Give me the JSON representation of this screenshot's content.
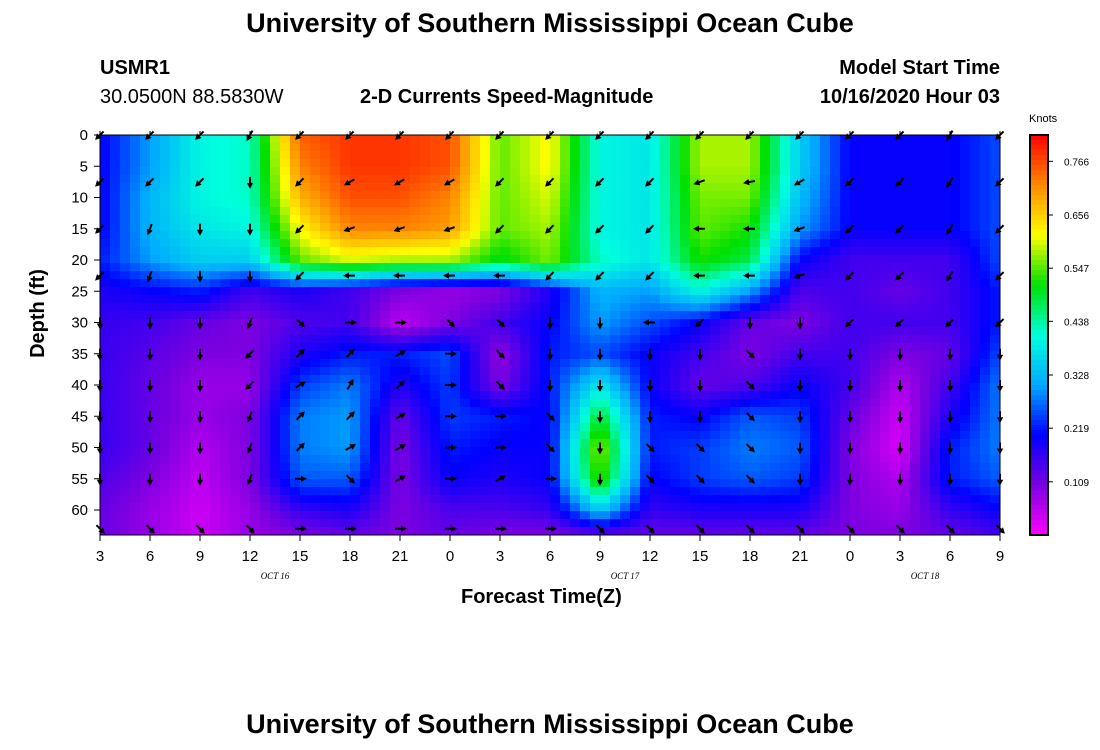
{
  "page": {
    "title_top": "University of Southern Mississippi Ocean Cube",
    "title_bottom": "University of Southern Mississippi Ocean Cube"
  },
  "header": {
    "station_id": "USMR1",
    "station_coords": "30.0500N 88.5830W",
    "product": "2-D Currents Speed-Magnitude",
    "model_start_label": "Model Start Time",
    "model_start_value": "10/16/2020 Hour 03"
  },
  "chart_data": {
    "type": "heatmap",
    "title": "2-D Currents Speed-Magnitude",
    "xlabel": "Forecast Time(Z)",
    "ylabel": "Depth (ft)",
    "x_tick_labels": [
      "3",
      "6",
      "9",
      "12",
      "15",
      "18",
      "21",
      "0",
      "3",
      "6",
      "9",
      "12",
      "15",
      "18",
      "21",
      "0",
      "3",
      "6",
      "9"
    ],
    "x_date_labels": [
      {
        "label": "OCT 16",
        "after_tick": 3
      },
      {
        "label": "OCT 17",
        "after_tick": 10
      },
      {
        "label": "OCT 18",
        "after_tick": 16
      }
    ],
    "y_ticks": [
      0,
      5,
      10,
      15,
      20,
      25,
      30,
      35,
      40,
      45,
      50,
      55,
      60
    ],
    "y_range": [
      0,
      64
    ],
    "colorbar": {
      "label": "Knots",
      "ticks": [
        "0.766",
        "0.656",
        "0.547",
        "0.438",
        "0.328",
        "0.219",
        "0.109"
      ],
      "range": [
        0.0,
        0.82
      ],
      "colors": [
        "#ff00ff",
        "#7a00e0",
        "#0000ff",
        "#00aaff",
        "#00ffdd",
        "#00e000",
        "#ffff00",
        "#ff8800",
        "#ff0000"
      ]
    },
    "speed_grid_knots": {
      "depths_ft": [
        0,
        5,
        10,
        15,
        20,
        25,
        30,
        35,
        40,
        45,
        50,
        55,
        60,
        64
      ],
      "rows": [
        [
          0.2,
          0.3,
          0.4,
          0.42,
          0.75,
          0.78,
          0.78,
          0.76,
          0.55,
          0.62,
          0.4,
          0.38,
          0.58,
          0.58,
          0.35,
          0.2,
          0.2,
          0.2,
          0.25
        ],
        [
          0.2,
          0.3,
          0.4,
          0.42,
          0.72,
          0.78,
          0.78,
          0.76,
          0.55,
          0.62,
          0.4,
          0.38,
          0.58,
          0.58,
          0.35,
          0.2,
          0.2,
          0.2,
          0.25
        ],
        [
          0.2,
          0.32,
          0.4,
          0.42,
          0.68,
          0.76,
          0.76,
          0.72,
          0.55,
          0.6,
          0.4,
          0.38,
          0.56,
          0.56,
          0.33,
          0.2,
          0.2,
          0.2,
          0.25
        ],
        [
          0.2,
          0.32,
          0.38,
          0.4,
          0.62,
          0.72,
          0.72,
          0.7,
          0.55,
          0.58,
          0.4,
          0.38,
          0.55,
          0.52,
          0.3,
          0.2,
          0.2,
          0.2,
          0.25
        ],
        [
          0.22,
          0.3,
          0.35,
          0.35,
          0.55,
          0.6,
          0.58,
          0.58,
          0.5,
          0.56,
          0.42,
          0.38,
          0.52,
          0.48,
          0.2,
          0.15,
          0.15,
          0.15,
          0.25
        ],
        [
          0.18,
          0.2,
          0.22,
          0.15,
          0.18,
          0.15,
          0.1,
          0.08,
          0.1,
          0.18,
          0.32,
          0.3,
          0.4,
          0.3,
          0.14,
          0.15,
          0.12,
          0.15,
          0.22
        ],
        [
          0.16,
          0.15,
          0.12,
          0.1,
          0.14,
          0.15,
          0.05,
          0.1,
          0.15,
          0.2,
          0.3,
          0.25,
          0.2,
          0.12,
          0.1,
          0.15,
          0.15,
          0.15,
          0.22
        ],
        [
          0.16,
          0.13,
          0.1,
          0.1,
          0.18,
          0.22,
          0.22,
          0.25,
          0.08,
          0.22,
          0.25,
          0.2,
          0.15,
          0.1,
          0.15,
          0.15,
          0.1,
          0.12,
          0.25
        ],
        [
          0.16,
          0.12,
          0.08,
          0.08,
          0.24,
          0.28,
          0.18,
          0.24,
          0.1,
          0.22,
          0.38,
          0.2,
          0.12,
          0.14,
          0.2,
          0.15,
          0.06,
          0.15,
          0.28
        ],
        [
          0.16,
          0.12,
          0.08,
          0.1,
          0.28,
          0.3,
          0.12,
          0.24,
          0.22,
          0.2,
          0.5,
          0.22,
          0.2,
          0.26,
          0.24,
          0.12,
          0.04,
          0.18,
          0.28
        ],
        [
          0.16,
          0.12,
          0.06,
          0.1,
          0.28,
          0.3,
          0.1,
          0.22,
          0.2,
          0.2,
          0.58,
          0.22,
          0.24,
          0.28,
          0.26,
          0.1,
          0.03,
          0.22,
          0.28
        ],
        [
          0.14,
          0.1,
          0.05,
          0.1,
          0.26,
          0.26,
          0.1,
          0.2,
          0.18,
          0.2,
          0.55,
          0.2,
          0.24,
          0.26,
          0.24,
          0.1,
          0.06,
          0.22,
          0.26
        ],
        [
          0.12,
          0.08,
          0.04,
          0.08,
          0.16,
          0.18,
          0.1,
          0.14,
          0.14,
          0.16,
          0.35,
          0.16,
          0.18,
          0.18,
          0.18,
          0.1,
          0.08,
          0.16,
          0.2
        ],
        [
          0.12,
          0.08,
          0.04,
          0.08,
          0.1,
          0.12,
          0.1,
          0.12,
          0.1,
          0.1,
          0.12,
          0.12,
          0.12,
          0.12,
          0.12,
          0.1,
          0.1,
          0.12,
          0.15
        ]
      ]
    },
    "direction_grid_deg": {
      "note_depths_ft": [
        0,
        7.5,
        15,
        22.5,
        30,
        35,
        40,
        45,
        50,
        55,
        63
      ],
      "rows": [
        [
          225,
          225,
          225,
          210,
          225,
          225,
          225,
          225,
          225,
          225,
          225,
          225,
          225,
          225,
          225,
          225,
          225,
          210,
          225
        ],
        [
          225,
          225,
          225,
          180,
          225,
          240,
          240,
          240,
          225,
          225,
          225,
          225,
          250,
          260,
          240,
          225,
          225,
          210,
          225
        ],
        [
          225,
          200,
          180,
          180,
          225,
          250,
          250,
          250,
          225,
          225,
          225,
          225,
          270,
          270,
          250,
          225,
          225,
          210,
          225
        ],
        [
          225,
          200,
          180,
          180,
          225,
          270,
          270,
          270,
          270,
          225,
          225,
          225,
          270,
          270,
          250,
          225,
          225,
          210,
          225
        ],
        [
          180,
          180,
          180,
          200,
          135,
          90,
          90,
          135,
          135,
          180,
          180,
          270,
          225,
          180,
          180,
          225,
          225,
          225,
          225
        ],
        [
          180,
          180,
          180,
          225,
          45,
          45,
          60,
          90,
          135,
          180,
          180,
          180,
          180,
          135,
          180,
          180,
          180,
          180,
          180
        ],
        [
          180,
          180,
          180,
          225,
          60,
          30,
          45,
          90,
          135,
          180,
          180,
          180,
          180,
          135,
          180,
          180,
          180,
          180,
          180
        ],
        [
          180,
          180,
          180,
          200,
          45,
          45,
          60,
          90,
          90,
          135,
          180,
          180,
          180,
          135,
          180,
          180,
          180,
          180,
          180
        ],
        [
          180,
          180,
          180,
          200,
          45,
          60,
          60,
          90,
          90,
          135,
          180,
          135,
          135,
          135,
          180,
          180,
          180,
          180,
          180
        ],
        [
          180,
          180,
          180,
          200,
          90,
          135,
          60,
          90,
          60,
          90,
          180,
          135,
          135,
          135,
          180,
          180,
          180,
          180,
          180
        ],
        [
          135,
          135,
          135,
          135,
          90,
          90,
          90,
          90,
          90,
          90,
          135,
          135,
          135,
          135,
          135,
          135,
          135,
          135,
          135
        ]
      ]
    }
  }
}
